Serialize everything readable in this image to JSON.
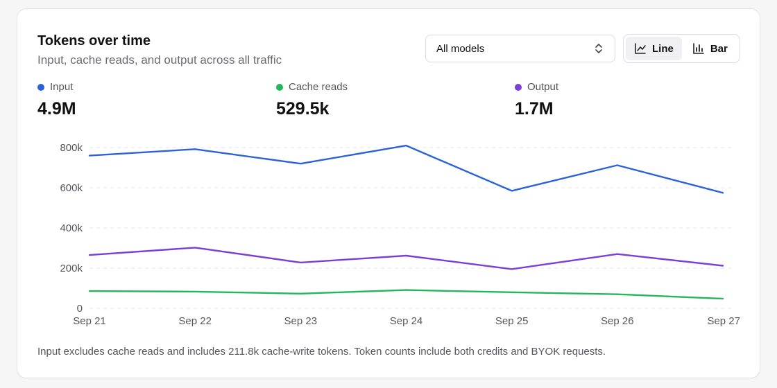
{
  "header": {
    "title": "Tokens over time",
    "subtitle": "Input, cache reads, and output across all traffic"
  },
  "controls": {
    "model_select": "All models",
    "view_toggle": [
      {
        "label": "Line",
        "icon": "line-chart-icon",
        "active": true
      },
      {
        "label": "Bar",
        "icon": "bar-chart-icon",
        "active": false
      }
    ]
  },
  "summary": [
    {
      "name": "Input",
      "value": "4.9M",
      "color": "#2b62d9"
    },
    {
      "name": "Cache reads",
      "value": "529.5k",
      "color": "#22b859"
    },
    {
      "name": "Output",
      "value": "1.7M",
      "color": "#7a3fd6"
    }
  ],
  "footnote": "Input excludes cache reads and includes 211.8k cache-write tokens. Token counts include both credits and BYOK requests.",
  "chart_data": {
    "type": "line",
    "x": [
      "Sep 21",
      "Sep 22",
      "Sep 23",
      "Sep 24",
      "Sep 25",
      "Sep 26",
      "Sep 27"
    ],
    "yticks": [
      0,
      200000,
      400000,
      600000,
      800000
    ],
    "ytick_labels": [
      "0",
      "200k",
      "400k",
      "600k",
      "800k"
    ],
    "ylim": [
      0,
      800000
    ],
    "grid": true,
    "series": [
      {
        "name": "Input",
        "color": "#2b62d9",
        "values": [
          760000,
          792000,
          720000,
          810000,
          585000,
          712000,
          575000
        ]
      },
      {
        "name": "Output",
        "color": "#7a3fd6",
        "values": [
          265000,
          302000,
          228000,
          262000,
          195000,
          270000,
          212000
        ]
      },
      {
        "name": "Cache reads",
        "color": "#22b859",
        "values": [
          86000,
          83000,
          73000,
          91000,
          80000,
          70000,
          48000
        ]
      }
    ]
  }
}
